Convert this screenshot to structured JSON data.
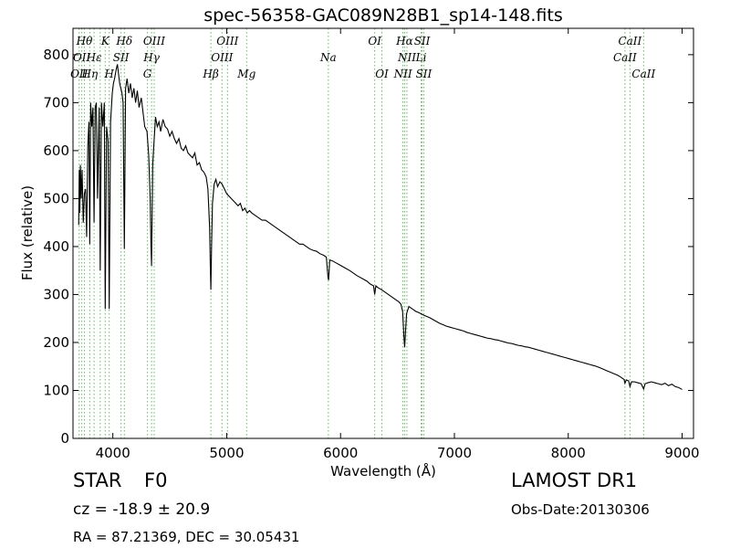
{
  "chart_data": {
    "type": "line",
    "title": "spec-56358-GAC089N28B1_sp14-148.fits",
    "xlabel": "Wavelength (Å)",
    "ylabel": "Flux (relative)",
    "xlim": [
      3650,
      9100
    ],
    "ylim": [
      0,
      855
    ],
    "x_ticks": [
      4000,
      5000,
      6000,
      7000,
      8000,
      9000
    ],
    "y_ticks": [
      0,
      100,
      200,
      300,
      400,
      500,
      600,
      700,
      800
    ],
    "grid": false,
    "line_color": "#000000",
    "marker_color": "#66bb66",
    "series": [
      {
        "points": [
          [
            3700,
            445
          ],
          [
            3705,
            560
          ],
          [
            3710,
            470
          ],
          [
            3715,
            570
          ],
          [
            3722,
            500
          ],
          [
            3730,
            560
          ],
          [
            3740,
            450
          ],
          [
            3750,
            510
          ],
          [
            3760,
            520
          ],
          [
            3770,
            420
          ],
          [
            3780,
            610
          ],
          [
            3790,
            660
          ],
          [
            3797,
            405
          ],
          [
            3805,
            700
          ],
          [
            3815,
            650
          ],
          [
            3825,
            690
          ],
          [
            3835,
            450
          ],
          [
            3845,
            690
          ],
          [
            3855,
            700
          ],
          [
            3865,
            500
          ],
          [
            3880,
            690
          ],
          [
            3889,
            350
          ],
          [
            3900,
            700
          ],
          [
            3912,
            650
          ],
          [
            3925,
            700
          ],
          [
            3933,
            270
          ],
          [
            3945,
            650
          ],
          [
            3958,
            620
          ],
          [
            3968,
            270
          ],
          [
            3980,
            660
          ],
          [
            3995,
            720
          ],
          [
            4005,
            740
          ],
          [
            4015,
            750
          ],
          [
            4030,
            770
          ],
          [
            4040,
            780
          ],
          [
            4050,
            760
          ],
          [
            4060,
            740
          ],
          [
            4070,
            730
          ],
          [
            4080,
            720
          ],
          [
            4090,
            700
          ],
          [
            4101,
            395
          ],
          [
            4112,
            730
          ],
          [
            4125,
            750
          ],
          [
            4140,
            720
          ],
          [
            4155,
            740
          ],
          [
            4170,
            710
          ],
          [
            4185,
            730
          ],
          [
            4200,
            700
          ],
          [
            4215,
            725
          ],
          [
            4230,
            690
          ],
          [
            4250,
            710
          ],
          [
            4265,
            680
          ],
          [
            4280,
            650
          ],
          [
            4300,
            640
          ],
          [
            4315,
            590
          ],
          [
            4328,
            500
          ],
          [
            4335,
            400
          ],
          [
            4340,
            360
          ],
          [
            4350,
            570
          ],
          [
            4362,
            620
          ],
          [
            4375,
            670
          ],
          [
            4390,
            650
          ],
          [
            4405,
            660
          ],
          [
            4420,
            640
          ],
          [
            4440,
            665
          ],
          [
            4460,
            650
          ],
          [
            4480,
            645
          ],
          [
            4500,
            630
          ],
          [
            4520,
            640
          ],
          [
            4540,
            625
          ],
          [
            4560,
            615
          ],
          [
            4580,
            625
          ],
          [
            4600,
            605
          ],
          [
            4620,
            600
          ],
          [
            4640,
            610
          ],
          [
            4660,
            595
          ],
          [
            4680,
            590
          ],
          [
            4700,
            585
          ],
          [
            4720,
            595
          ],
          [
            4740,
            570
          ],
          [
            4760,
            575
          ],
          [
            4780,
            560
          ],
          [
            4800,
            555
          ],
          [
            4820,
            545
          ],
          [
            4835,
            520
          ],
          [
            4850,
            440
          ],
          [
            4856,
            360
          ],
          [
            4861,
            310
          ],
          [
            4867,
            400
          ],
          [
            4875,
            490
          ],
          [
            4890,
            530
          ],
          [
            4905,
            540
          ],
          [
            4920,
            525
          ],
          [
            4940,
            535
          ],
          [
            4960,
            530
          ],
          [
            4980,
            520
          ],
          [
            5000,
            510
          ],
          [
            5020,
            505
          ],
          [
            5040,
            500
          ],
          [
            5060,
            495
          ],
          [
            5080,
            490
          ],
          [
            5100,
            485
          ],
          [
            5120,
            490
          ],
          [
            5140,
            475
          ],
          [
            5160,
            480
          ],
          [
            5180,
            470
          ],
          [
            5200,
            475
          ],
          [
            5220,
            470
          ],
          [
            5250,
            465
          ],
          [
            5280,
            460
          ],
          [
            5310,
            455
          ],
          [
            5340,
            455
          ],
          [
            5370,
            450
          ],
          [
            5400,
            445
          ],
          [
            5430,
            440
          ],
          [
            5460,
            435
          ],
          [
            5490,
            430
          ],
          [
            5520,
            425
          ],
          [
            5550,
            420
          ],
          [
            5580,
            415
          ],
          [
            5610,
            410
          ],
          [
            5640,
            405
          ],
          [
            5670,
            405
          ],
          [
            5700,
            400
          ],
          [
            5730,
            395
          ],
          [
            5760,
            392
          ],
          [
            5790,
            390
          ],
          [
            5820,
            385
          ],
          [
            5850,
            382
          ],
          [
            5875,
            378
          ],
          [
            5890,
            335
          ],
          [
            5895,
            330
          ],
          [
            5905,
            372
          ],
          [
            5930,
            370
          ],
          [
            5960,
            366
          ],
          [
            5990,
            362
          ],
          [
            6020,
            358
          ],
          [
            6050,
            354
          ],
          [
            6080,
            350
          ],
          [
            6110,
            345
          ],
          [
            6140,
            340
          ],
          [
            6170,
            336
          ],
          [
            6200,
            332
          ],
          [
            6230,
            328
          ],
          [
            6260,
            322
          ],
          [
            6290,
            318
          ],
          [
            6300,
            300
          ],
          [
            6310,
            318
          ],
          [
            6330,
            314
          ],
          [
            6360,
            310
          ],
          [
            6390,
            305
          ],
          [
            6420,
            300
          ],
          [
            6450,
            295
          ],
          [
            6480,
            290
          ],
          [
            6510,
            285
          ],
          [
            6530,
            280
          ],
          [
            6545,
            265
          ],
          [
            6556,
            215
          ],
          [
            6563,
            190
          ],
          [
            6570,
            220
          ],
          [
            6580,
            260
          ],
          [
            6600,
            275
          ],
          [
            6630,
            270
          ],
          [
            6660,
            265
          ],
          [
            6690,
            262
          ],
          [
            6720,
            258
          ],
          [
            6750,
            255
          ],
          [
            6780,
            252
          ],
          [
            6810,
            248
          ],
          [
            6840,
            244
          ],
          [
            6870,
            240
          ],
          [
            6900,
            237
          ],
          [
            6930,
            234
          ],
          [
            6960,
            232
          ],
          [
            6990,
            230
          ],
          [
            7020,
            228
          ],
          [
            7050,
            226
          ],
          [
            7080,
            224
          ],
          [
            7110,
            221
          ],
          [
            7140,
            219
          ],
          [
            7170,
            217
          ],
          [
            7200,
            215
          ],
          [
            7230,
            213
          ],
          [
            7260,
            211
          ],
          [
            7290,
            209
          ],
          [
            7320,
            208
          ],
          [
            7350,
            206
          ],
          [
            7380,
            205
          ],
          [
            7410,
            203
          ],
          [
            7440,
            201
          ],
          [
            7470,
            199
          ],
          [
            7500,
            198
          ],
          [
            7530,
            196
          ],
          [
            7560,
            194
          ],
          [
            7590,
            193
          ],
          [
            7620,
            191
          ],
          [
            7650,
            190
          ],
          [
            7680,
            188
          ],
          [
            7710,
            186
          ],
          [
            7740,
            184
          ],
          [
            7770,
            182
          ],
          [
            7800,
            180
          ],
          [
            7830,
            178
          ],
          [
            7860,
            176
          ],
          [
            7890,
            174
          ],
          [
            7920,
            172
          ],
          [
            7950,
            170
          ],
          [
            7980,
            168
          ],
          [
            8010,
            166
          ],
          [
            8040,
            164
          ],
          [
            8070,
            162
          ],
          [
            8100,
            160
          ],
          [
            8130,
            158
          ],
          [
            8160,
            156
          ],
          [
            8190,
            154
          ],
          [
            8220,
            152
          ],
          [
            8250,
            150
          ],
          [
            8280,
            147
          ],
          [
            8310,
            144
          ],
          [
            8340,
            141
          ],
          [
            8370,
            138
          ],
          [
            8400,
            135
          ],
          [
            8430,
            132
          ],
          [
            8460,
            128
          ],
          [
            8490,
            123
          ],
          [
            8498,
            115
          ],
          [
            8510,
            122
          ],
          [
            8530,
            120
          ],
          [
            8542,
            108
          ],
          [
            8555,
            118
          ],
          [
            8580,
            118
          ],
          [
            8610,
            116
          ],
          [
            8640,
            114
          ],
          [
            8662,
            103
          ],
          [
            8675,
            114
          ],
          [
            8700,
            116
          ],
          [
            8730,
            118
          ],
          [
            8760,
            116
          ],
          [
            8790,
            114
          ],
          [
            8820,
            112
          ],
          [
            8850,
            115
          ],
          [
            8880,
            110
          ],
          [
            8910,
            113
          ],
          [
            8940,
            108
          ],
          [
            8970,
            106
          ],
          [
            9000,
            102
          ]
        ]
      }
    ],
    "markers": [
      {
        "x": 3704,
        "label": "OII",
        "row": 2
      },
      {
        "x": 3727,
        "label": "OII",
        "row": 1
      },
      {
        "x": 3750,
        "label": "Hθ",
        "row": 0
      },
      {
        "x": 3797,
        "label": "Hη",
        "row": 2
      },
      {
        "x": 3835,
        "label": "Hε",
        "row": 1
      },
      {
        "x": 3889,
        "label": "",
        "row": 1
      },
      {
        "x": 3933,
        "label": "K",
        "row": 0
      },
      {
        "x": 3968,
        "label": "H",
        "row": 2
      },
      {
        "x": 4072,
        "label": "SII",
        "row": 1
      },
      {
        "x": 4101,
        "label": "Hδ",
        "row": 0
      },
      {
        "x": 4304,
        "label": "G",
        "row": 2
      },
      {
        "x": 4340,
        "label": "Hγ",
        "row": 1
      },
      {
        "x": 4363,
        "label": "OIII",
        "row": 0
      },
      {
        "x": 4861,
        "label": "Hβ",
        "row": 2
      },
      {
        "x": 4959,
        "label": "OIII",
        "row": 1
      },
      {
        "x": 5007,
        "label": "OIII",
        "row": 0
      },
      {
        "x": 5175,
        "label": "Mg",
        "row": 2
      },
      {
        "x": 5893,
        "label": "Na",
        "row": 1
      },
      {
        "x": 6300,
        "label": "OI",
        "row": 0
      },
      {
        "x": 6363,
        "label": "OI",
        "row": 2
      },
      {
        "x": 6548,
        "label": "NII",
        "row": 2
      },
      {
        "x": 6563,
        "label": "Hα",
        "row": 0
      },
      {
        "x": 6583,
        "label": "NII",
        "row": 1
      },
      {
        "x": 6708,
        "label": "Li",
        "row": 1
      },
      {
        "x": 6716,
        "label": "SII",
        "row": 0
      },
      {
        "x": 6731,
        "label": "SII",
        "row": 2
      },
      {
        "x": 8498,
        "label": "CaII",
        "row": 1
      },
      {
        "x": 8542,
        "label": "CaII",
        "row": 0
      },
      {
        "x": 8662,
        "label": "CaII",
        "row": 2
      }
    ]
  },
  "info": {
    "object_class": "STAR",
    "subclass": "F0",
    "survey": "LAMOST DR1",
    "redshift": "cz = -18.9 ± 20.9",
    "obs_date": "Obs-Date:20130306",
    "coordinates": "RA = 87.21369, DEC = 30.05431"
  }
}
